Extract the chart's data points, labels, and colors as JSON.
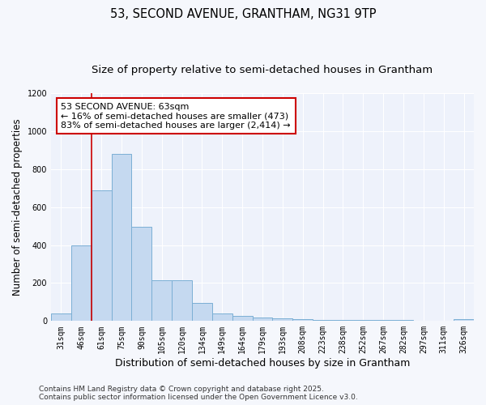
{
  "title1": "53, SECOND AVENUE, GRANTHAM, NG31 9TP",
  "title2": "Size of property relative to semi-detached houses in Grantham",
  "xlabel": "Distribution of semi-detached houses by size in Grantham",
  "ylabel": "Number of semi-detached properties",
  "categories": [
    "31sqm",
    "46sqm",
    "61sqm",
    "75sqm",
    "90sqm",
    "105sqm",
    "120sqm",
    "134sqm",
    "149sqm",
    "164sqm",
    "179sqm",
    "193sqm",
    "208sqm",
    "223sqm",
    "238sqm",
    "252sqm",
    "267sqm",
    "282sqm",
    "297sqm",
    "311sqm",
    "326sqm"
  ],
  "values": [
    40,
    400,
    690,
    880,
    495,
    215,
    215,
    95,
    40,
    25,
    20,
    15,
    10,
    5,
    5,
    5,
    5,
    5,
    2,
    2,
    8
  ],
  "bar_color": "#c5d9f0",
  "bar_edge_color": "#7bafd4",
  "annotation_title": "53 SECOND AVENUE: 63sqm",
  "annotation_line1": "← 16% of semi-detached houses are smaller (473)",
  "annotation_line2": "83% of semi-detached houses are larger (2,414) →",
  "annotation_box_facecolor": "#ffffff",
  "annotation_box_edgecolor": "#cc0000",
  "vline_color": "#cc0000",
  "vline_x": 1.5,
  "footer1": "Contains HM Land Registry data © Crown copyright and database right 2025.",
  "footer2": "Contains public sector information licensed under the Open Government Licence v3.0.",
  "ylim": [
    0,
    1200
  ],
  "yticks": [
    0,
    200,
    400,
    600,
    800,
    1000,
    1200
  ],
  "plot_bg_color": "#eef2fb",
  "fig_bg_color": "#f5f7fc",
  "grid_color": "#ffffff",
  "title_fontsize": 10.5,
  "subtitle_fontsize": 9.5,
  "tick_fontsize": 7,
  "ylabel_fontsize": 8.5,
  "xlabel_fontsize": 9,
  "footer_fontsize": 6.5,
  "annot_fontsize": 8
}
